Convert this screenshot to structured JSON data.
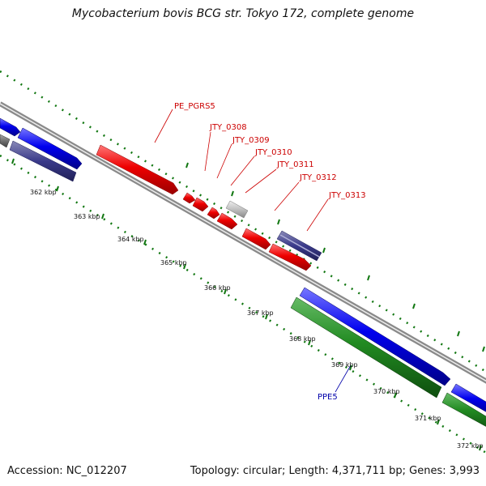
{
  "header": {
    "title": "Mycobacterium bovis BCG str. Tokyo 172, complete genome"
  },
  "footer": {
    "accession": "Accession: NC_012207",
    "summary": "Topology: circular; Length: 4,371,711 bp; Genes: 3,993"
  },
  "scale": {
    "labels": [
      "362 kbp",
      "363 kbp",
      "364 kbp",
      "365 kbp",
      "366 kbp",
      "367 kbp",
      "368 kbp",
      "369 kbp",
      "370 kbp",
      "371 kbp",
      "372 kbp"
    ]
  },
  "genes": {
    "pe_pgrs5": "PE_PGRS5",
    "jty_0308": "JTY_0308",
    "jty_0309": "JTY_0309",
    "jty_0310": "JTY_0310",
    "jty_0311": "JTY_0311",
    "jty_0312": "JTY_0312",
    "jty_0313": "JTY_0313",
    "ppe5": "PPE5"
  },
  "colors": {
    "backbone": "#8a8a8a",
    "gene_red": "#ee0000",
    "gene_blue": "#0000ee",
    "gene_green": "#228b22",
    "gene_gray": "#c0c0c0",
    "gene_navy": "#3a3a8a",
    "tick_green": "#117711",
    "label_red": "#cc0000",
    "label_blue": "#0000aa"
  }
}
